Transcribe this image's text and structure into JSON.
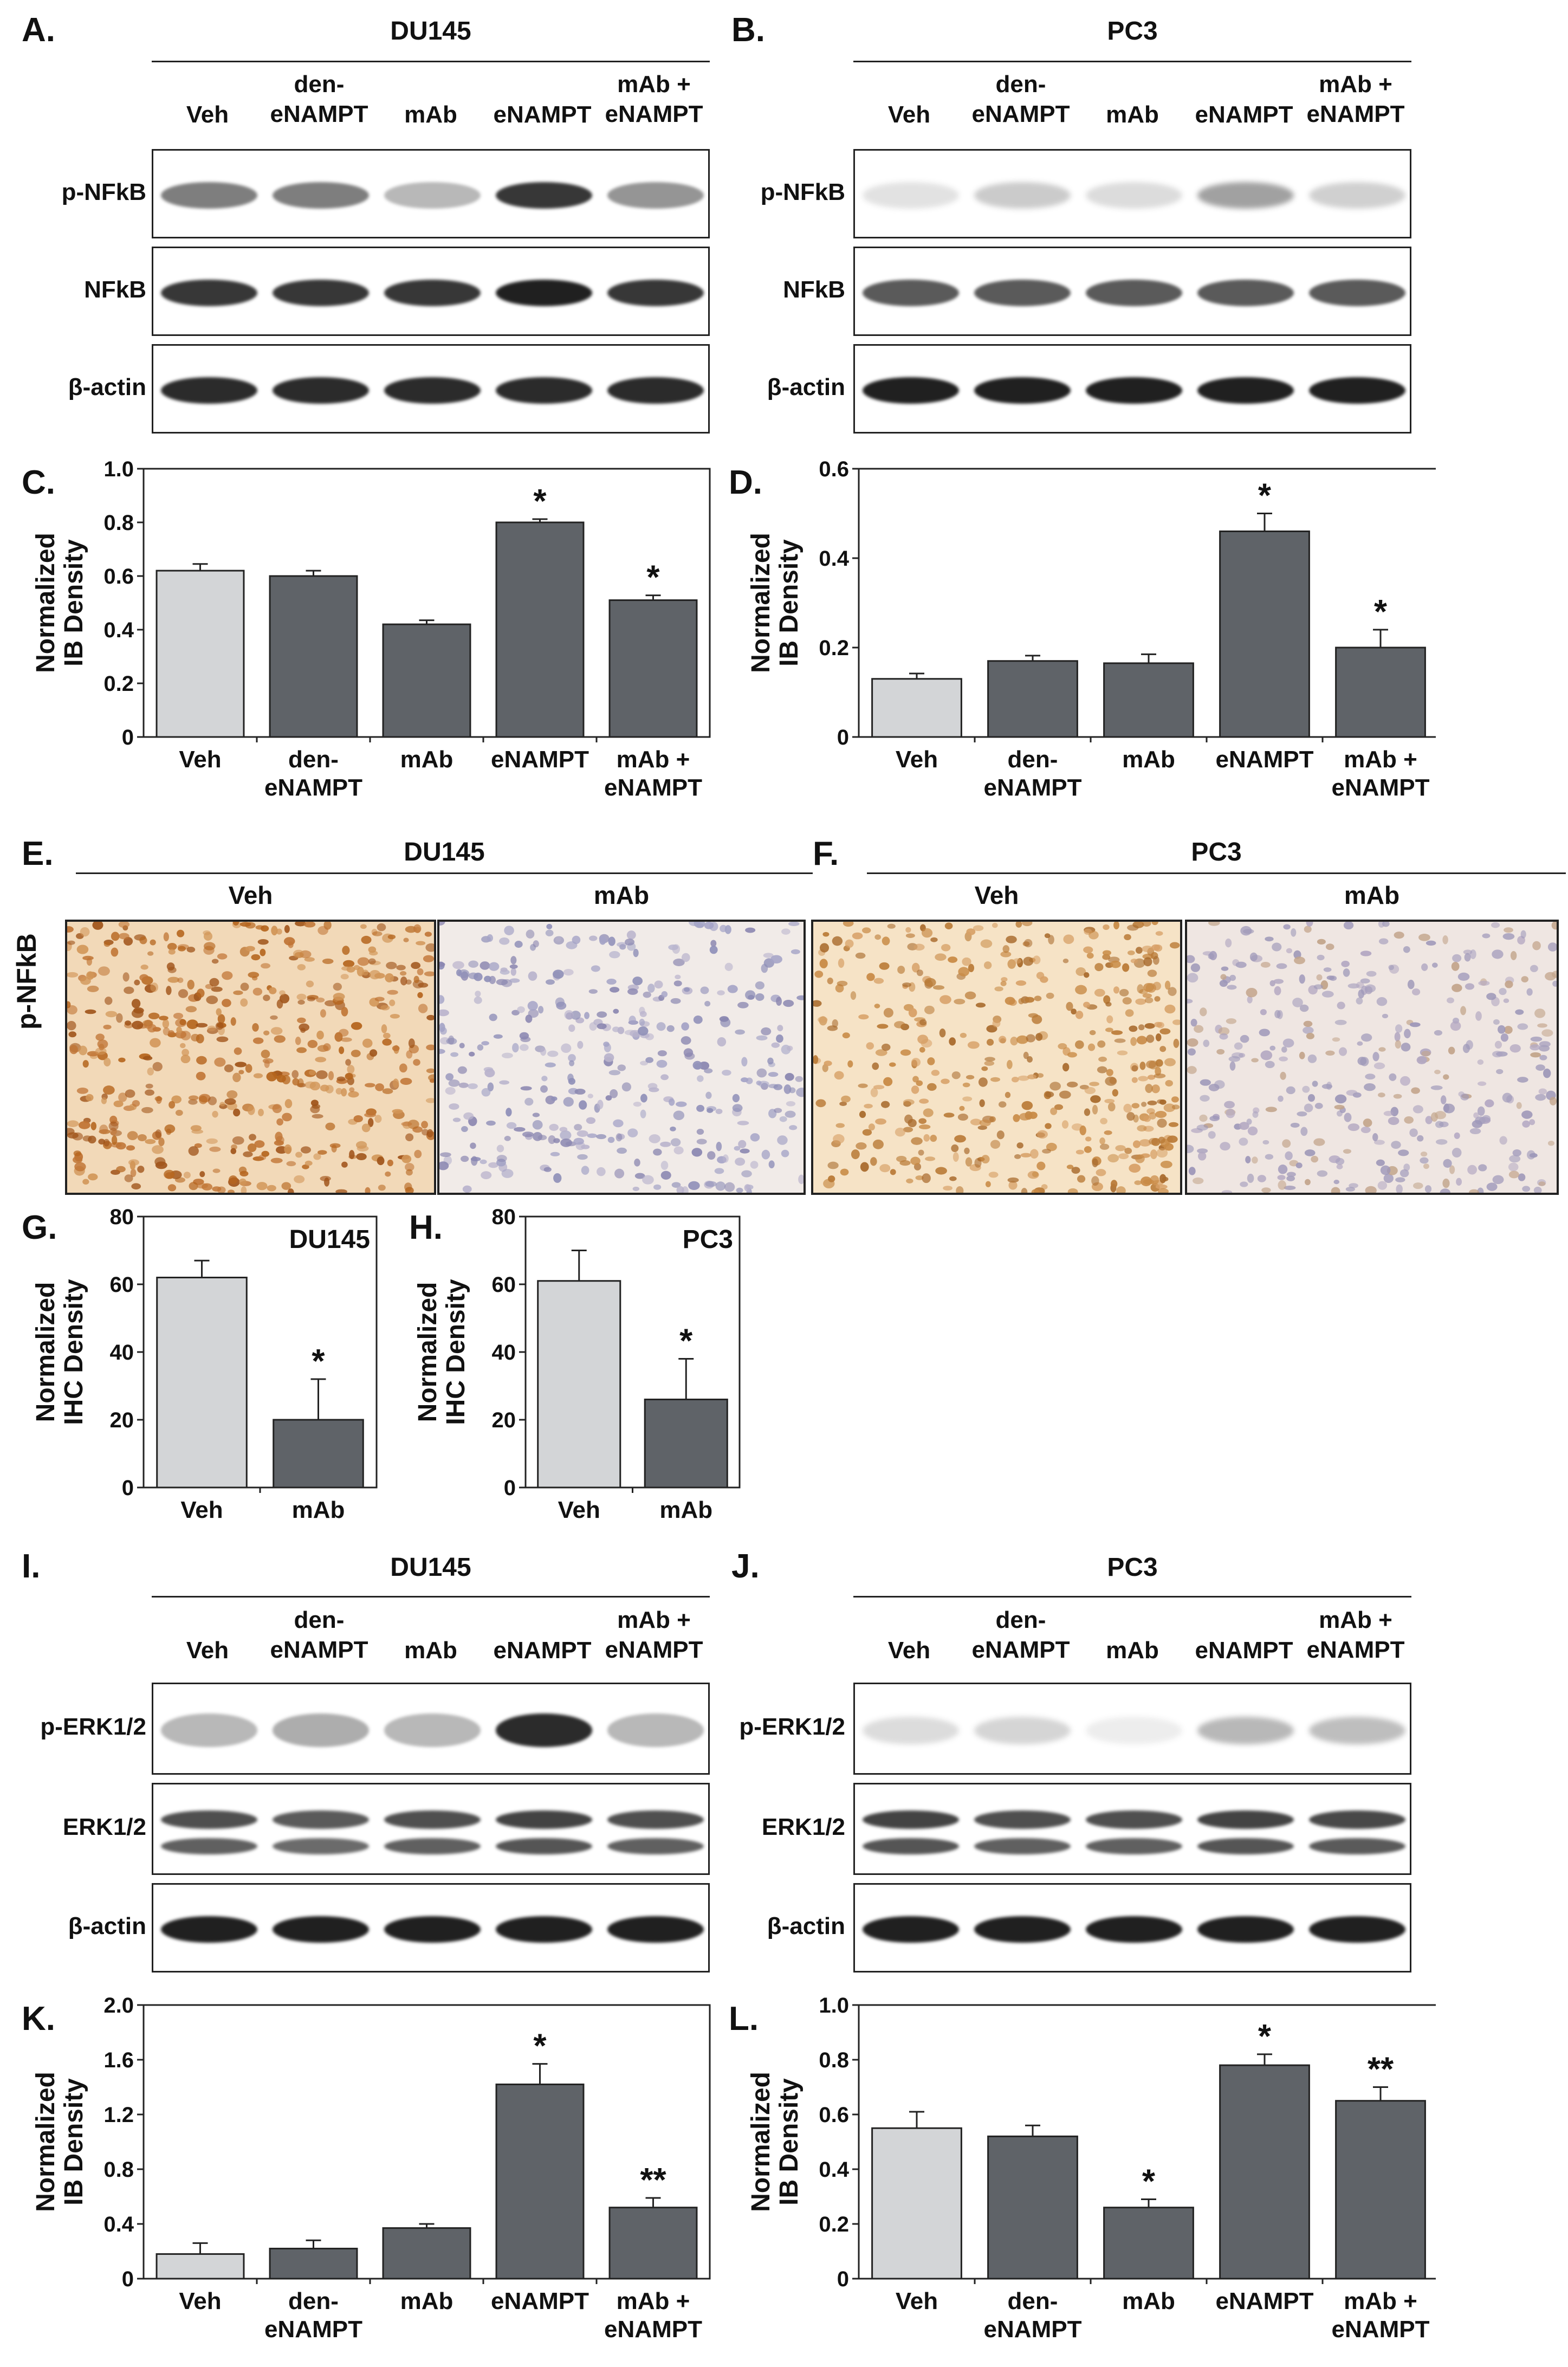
{
  "panels": {
    "A": {
      "letter": "A.",
      "title": "DU145"
    },
    "B": {
      "letter": "B.",
      "title": "PC3"
    },
    "C": {
      "letter": "C."
    },
    "D": {
      "letter": "D."
    },
    "E": {
      "letter": "E.",
      "title": "DU145"
    },
    "F": {
      "letter": "F.",
      "title": "PC3"
    },
    "G": {
      "letter": "G."
    },
    "H": {
      "letter": "H."
    },
    "I": {
      "letter": "I.",
      "title": "DU145"
    },
    "J": {
      "letter": "J.",
      "title": "PC3"
    },
    "K": {
      "letter": "K."
    },
    "L": {
      "letter": "L."
    }
  },
  "lanes": [
    "Veh",
    "den-\neNAMPT",
    "mAb",
    "eNAMPT",
    "mAb +\neNAMPT"
  ],
  "blot_rows": {
    "nfkb": [
      "p-NFkB",
      "NFkB",
      "β-actin"
    ],
    "erk": [
      "p-ERK1/2",
      "ERK1/2",
      "β-actin"
    ]
  },
  "ihc": {
    "row_label": "p-NFkB",
    "conditions": [
      "Veh",
      "mAb"
    ]
  },
  "colors": {
    "veh_bar": "#d3d5d7",
    "treat_bar": "#5f6368",
    "band": "#1a1a1a"
  },
  "chart_data": [
    {
      "id": "C",
      "type": "bar",
      "ylabel": "Normalized\nIB Density",
      "ylim": [
        0,
        1.0
      ],
      "yticks": [
        "0",
        "0.2",
        "0.4",
        "0.6",
        "0.8",
        "1.0"
      ],
      "categories": [
        "Veh",
        "den-\neNAMPT",
        "mAb",
        "eNAMPT",
        "mAb +\neNAMPT"
      ],
      "values": [
        0.62,
        0.6,
        0.42,
        0.8,
        0.51
      ],
      "errors": [
        0.025,
        0.02,
        0.015,
        0.012,
        0.018
      ],
      "sig": [
        "",
        "",
        "",
        "*",
        "*"
      ]
    },
    {
      "id": "D",
      "type": "bar",
      "ylabel": "Normalized\nIB Density",
      "ylim": [
        0,
        0.6
      ],
      "yticks": [
        "0",
        "0.2",
        "0.4",
        "0.6"
      ],
      "categories": [
        "Veh",
        "den-\neNAMPT",
        "mAb",
        "eNAMPT",
        "mAb +\neNAMPT"
      ],
      "values": [
        0.13,
        0.17,
        0.165,
        0.46,
        0.2
      ],
      "errors": [
        0.012,
        0.012,
        0.02,
        0.04,
        0.04
      ],
      "sig": [
        "",
        "",
        "",
        "*",
        "*"
      ]
    },
    {
      "id": "G",
      "type": "bar",
      "ylabel": "Normalized\nIHC Density",
      "ylim": [
        0,
        80
      ],
      "yticks": [
        "0",
        "20",
        "40",
        "60",
        "80"
      ],
      "inset": "DU145",
      "categories": [
        "Veh",
        "mAb"
      ],
      "values": [
        62,
        20
      ],
      "errors": [
        5,
        12
      ],
      "sig": [
        "",
        "*"
      ]
    },
    {
      "id": "H",
      "type": "bar",
      "ylabel": "Normalized\nIHC Density",
      "ylim": [
        0,
        80
      ],
      "yticks": [
        "0",
        "20",
        "40",
        "60",
        "80"
      ],
      "inset": "PC3",
      "categories": [
        "Veh",
        "mAb"
      ],
      "values": [
        61,
        26
      ],
      "errors": [
        9,
        12
      ],
      "sig": [
        "",
        "*"
      ]
    },
    {
      "id": "K",
      "type": "bar",
      "ylabel": "Normalized\nIB Density",
      "ylim": [
        0,
        2.0
      ],
      "yticks": [
        "0",
        "0.4",
        "0.8",
        "1.2",
        "1.6",
        "2.0"
      ],
      "categories": [
        "Veh",
        "den-\neNAMPT",
        "mAb",
        "eNAMPT",
        "mAb +\neNAMPT"
      ],
      "values": [
        0.18,
        0.22,
        0.37,
        1.42,
        0.52
      ],
      "errors": [
        0.08,
        0.06,
        0.03,
        0.15,
        0.07
      ],
      "sig": [
        "",
        "",
        "",
        "*",
        "**"
      ]
    },
    {
      "id": "L",
      "type": "bar",
      "ylabel": "Normalized\nIB Density",
      "ylim": [
        0,
        1.0
      ],
      "yticks": [
        "0",
        "0.2",
        "0.4",
        "0.6",
        "0.8",
        "1.0"
      ],
      "categories": [
        "Veh",
        "den-\neNAMPT",
        "mAb",
        "eNAMPT",
        "mAb +\neNAMPT"
      ],
      "values": [
        0.55,
        0.52,
        0.26,
        0.78,
        0.65
      ],
      "errors": [
        0.06,
        0.04,
        0.03,
        0.04,
        0.05
      ],
      "sig": [
        "",
        "",
        "*",
        "*",
        "**"
      ]
    }
  ]
}
